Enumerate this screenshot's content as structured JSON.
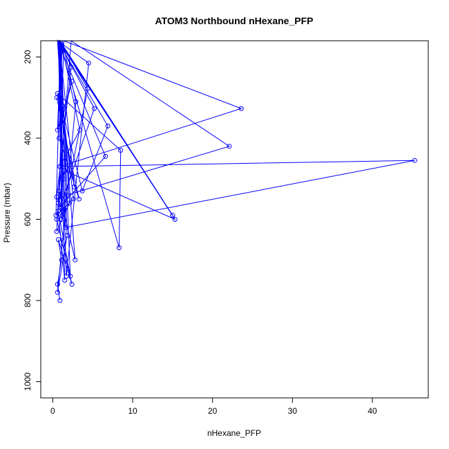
{
  "chart_data": {
    "type": "line",
    "title": "ATOM3 Northbound nHexane_PFP",
    "xlabel": "nHexane_PFP",
    "ylabel": "Pressure (mbar)",
    "xlim": [
      -1.5,
      47
    ],
    "ylim": [
      1040,
      160
    ],
    "y_reversed": true,
    "x_ticks": [
      0,
      10,
      20,
      30,
      40
    ],
    "y_ticks": [
      200,
      400,
      600,
      800,
      1000
    ],
    "grid": false,
    "series_color": "#0000ff",
    "markers": "open-circle",
    "x": [
      0.9,
      0.6,
      1.1,
      0.7,
      2.4,
      0.5,
      1.3,
      0.8,
      3.7,
      6.9,
      0.6,
      1.8,
      22.1,
      2.3,
      0.7,
      1.5,
      15.3,
      0.8,
      1.2,
      2.6,
      0.4,
      1.0,
      3.4,
      0.9,
      45.3,
      1.6,
      0.7,
      2.8,
      0.8,
      1.4,
      23.6,
      0.9,
      0.5,
      2.1,
      0.8,
      1.7,
      4.5,
      0.6,
      6.6,
      0.9,
      5.2,
      0.7,
      1.2,
      0.5,
      2.3,
      0.9,
      4.4,
      1.1,
      0.8,
      2.7,
      0.6,
      8.5,
      8.3,
      0.8,
      1.5,
      0.7,
      2.2,
      1.0,
      0.6,
      2.4,
      1.1,
      0.7,
      15.0,
      0.9,
      1.8,
      0.6,
      2.9,
      1.2,
      0.8,
      3.3,
      0.5
    ],
    "y": [
      800,
      760,
      700,
      650,
      760,
      600,
      500,
      300,
      530,
      370,
      150,
      540,
      420,
      150,
      560,
      480,
      600,
      150,
      320,
      550,
      590,
      150,
      380,
      470,
      455,
      620,
      150,
      700,
      530,
      150,
      327,
      470,
      630,
      560,
      150,
      740,
      215,
      150,
      445,
      570,
      327,
      150,
      590,
      545,
      225,
      150,
      278,
      600,
      150,
      520,
      290,
      430,
      670,
      150,
      750,
      580,
      740,
      150,
      380,
      260,
      360,
      150,
      590,
      150,
      640,
      780,
      310,
      150,
      400,
      550,
      300
    ]
  }
}
